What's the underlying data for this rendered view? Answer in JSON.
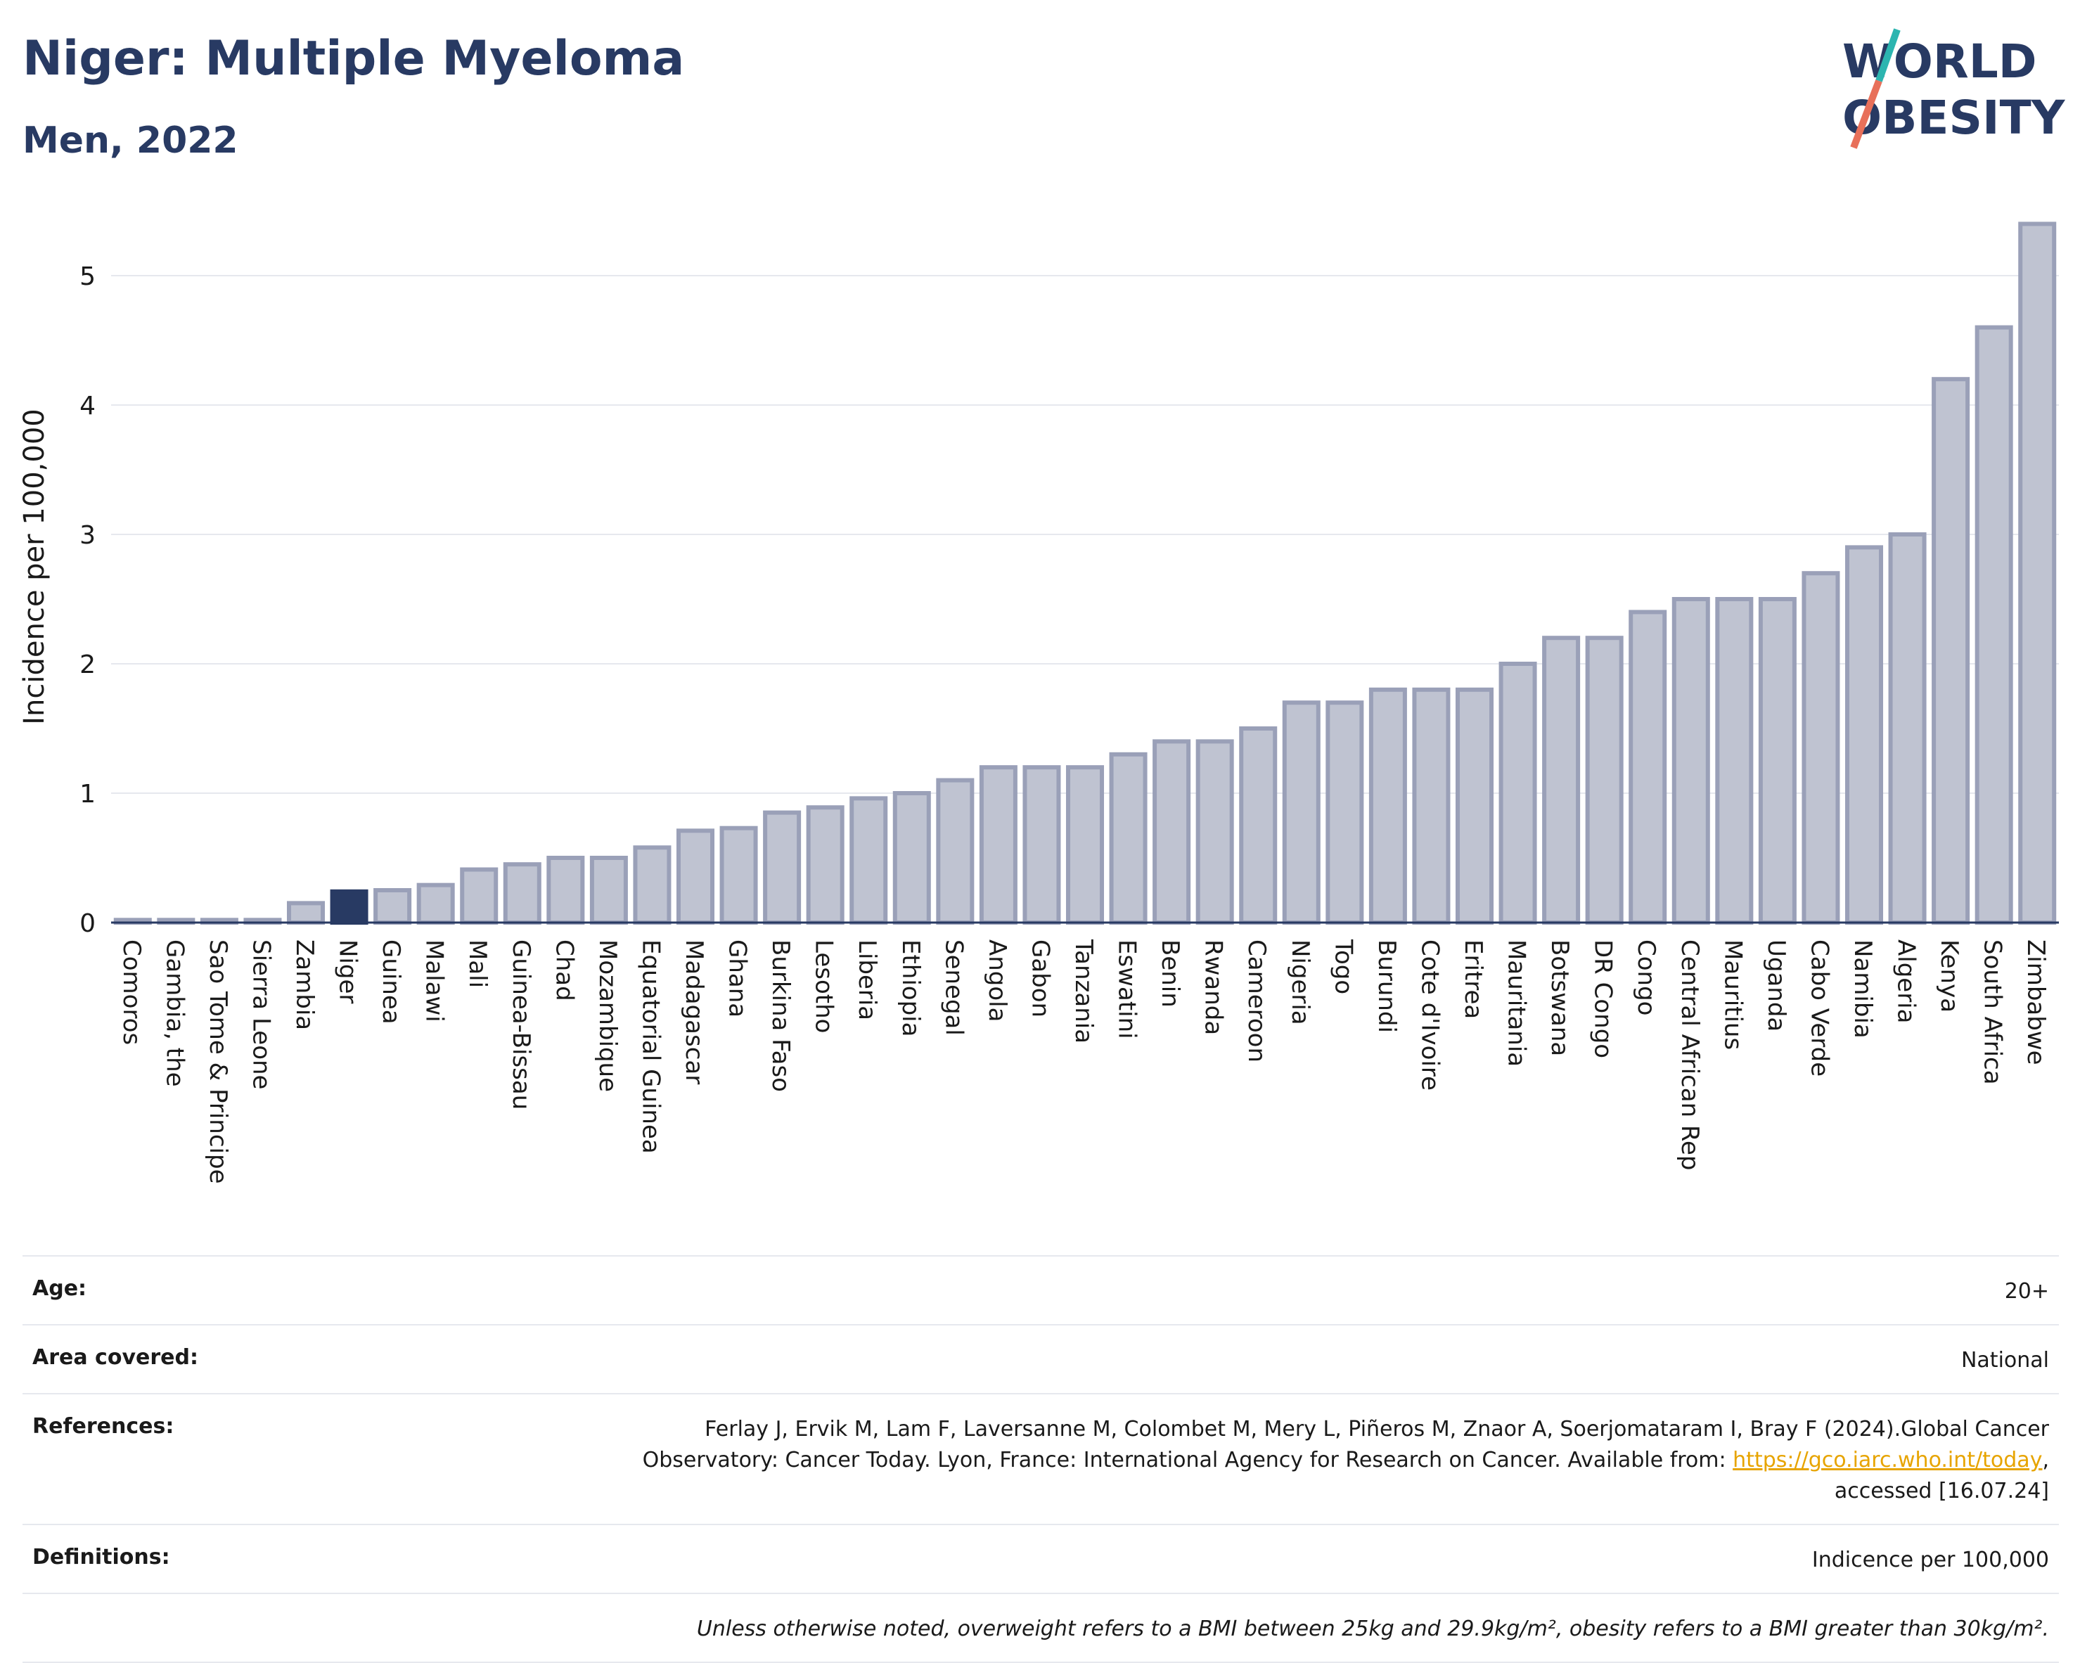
{
  "header": {
    "title": "Niger: Multiple Myeloma",
    "subtitle": "Men, 2022"
  },
  "logo": {
    "line1": "WORLD",
    "line2": "OBESITY",
    "accent_colors": [
      "#2cb5b0",
      "#e8705a"
    ]
  },
  "chart_data": {
    "type": "bar",
    "ylabel": "Incidence per 100,000",
    "xlabel": "",
    "ylim": [
      0,
      5.5
    ],
    "yticks": [
      0,
      1,
      2,
      3,
      4,
      5
    ],
    "grid": true,
    "highlight": "Niger",
    "colors": {
      "bar": "#bfc3d1",
      "bar_edge": "#9aa0b8",
      "highlight": "#283a63"
    },
    "categories": [
      "Comoros",
      "Gambia, the",
      "Sao Tome & Principe",
      "Sierra Leone",
      "Zambia",
      "Niger",
      "Guinea",
      "Malawi",
      "Mali",
      "Guinea-Bissau",
      "Chad",
      "Mozambique",
      "Equatorial Guinea",
      "Madagascar",
      "Ghana",
      "Burkina Faso",
      "Lesotho",
      "Liberia",
      "Ethiopia",
      "Senegal",
      "Angola",
      "Gabon",
      "Tanzania",
      "Eswatini",
      "Benin",
      "Rwanda",
      "Cameroon",
      "Nigeria",
      "Togo",
      "Burundi",
      "Cote d'Ivoire",
      "Eritrea",
      "Mauritania",
      "Botswana",
      "DR Congo",
      "Congo",
      "Central African Rep",
      "Mauritius",
      "Uganda",
      "Cabo Verde",
      "Namibia",
      "Algeria",
      "Kenya",
      "South Africa",
      "Zimbabwe"
    ],
    "values": [
      0.02,
      0.02,
      0.02,
      0.02,
      0.15,
      0.24,
      0.25,
      0.29,
      0.41,
      0.45,
      0.5,
      0.5,
      0.58,
      0.71,
      0.73,
      0.85,
      0.89,
      0.96,
      1.0,
      1.1,
      1.2,
      1.2,
      1.2,
      1.3,
      1.4,
      1.4,
      1.5,
      1.7,
      1.7,
      1.8,
      1.8,
      1.8,
      2.0,
      2.2,
      2.2,
      2.4,
      2.5,
      2.5,
      2.5,
      2.7,
      2.9,
      3.0,
      4.2,
      4.6,
      5.4
    ]
  },
  "info": {
    "age": {
      "label": "Age:",
      "value": "20+"
    },
    "area": {
      "label": "Area covered:",
      "value": "National"
    },
    "references": {
      "label": "References:",
      "line1": "Ferlay J, Ervik M, Lam F, Laversanne M, Colombet M, Mery L, Piñeros M, Znaor A, Soerjomataram I, Bray F (2024).Global Cancer",
      "line2_prefix": "Observatory: Cancer Today. Lyon, France: International Agency for Research on Cancer. Available from: ",
      "link": "https://gco.iarc.who.int/today",
      "line2_suffix": ",",
      "line3": "accessed [16.07.24]"
    },
    "definitions": {
      "label": "Definitions:",
      "value": "Indicence per 100,000"
    },
    "note": "Unless otherwise noted, overweight refers to a BMI between 25kg and 29.9kg/m², obesity refers to a BMI greater than 30kg/m²."
  }
}
